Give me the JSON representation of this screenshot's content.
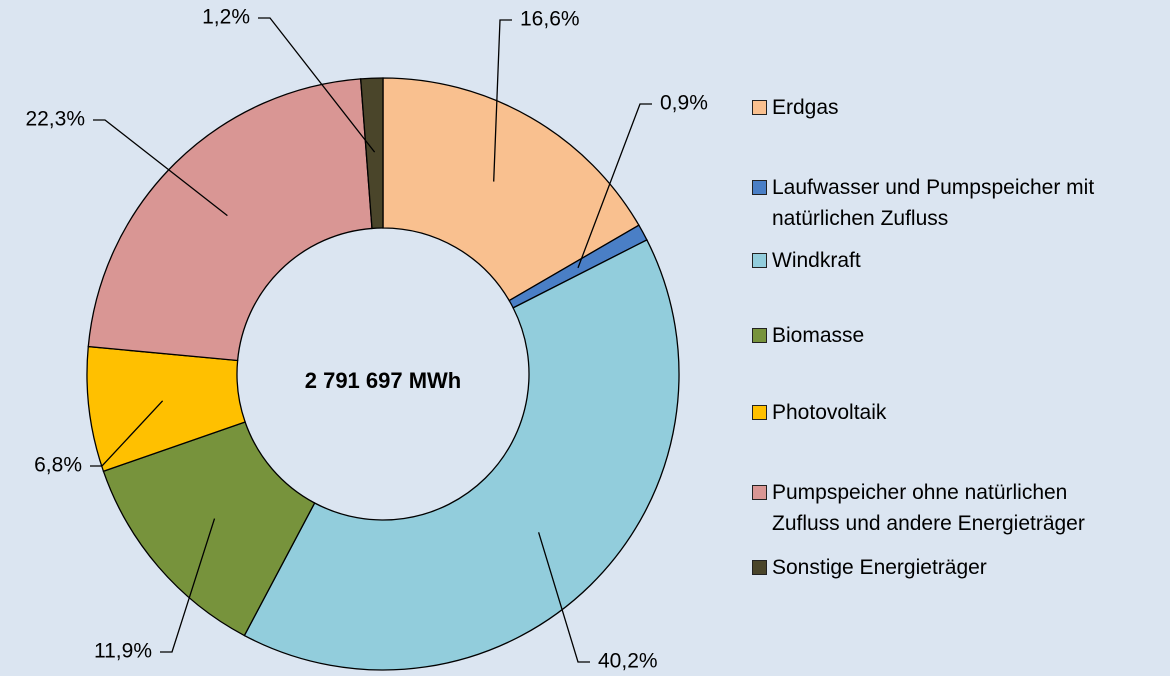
{
  "chart_data": {
    "type": "donut",
    "center_label": "2 791 697 MWh",
    "categories": [
      "Erdgas",
      "Laufwasser und Pumpspeicher mit natürlichen Zufluss",
      "Windkraft",
      "Biomasse",
      "Photovoltaik",
      "Pumpspeicher ohne natürlichen Zufluss und andere Energieträger",
      "Sonstige Energieträger"
    ],
    "values": [
      16.6,
      0.9,
      40.2,
      11.9,
      6.8,
      22.3,
      1.2
    ],
    "value_labels": [
      "16,6%",
      "0,9%",
      "40,2%",
      "11,9%",
      "6,8%",
      "22,3%",
      "1,2%"
    ],
    "colors": [
      "#f9c08f",
      "#4a7fc6",
      "#92cddc",
      "#77933c",
      "#ffc000",
      "#d99694",
      "#4a452a"
    ],
    "legend": "right"
  }
}
